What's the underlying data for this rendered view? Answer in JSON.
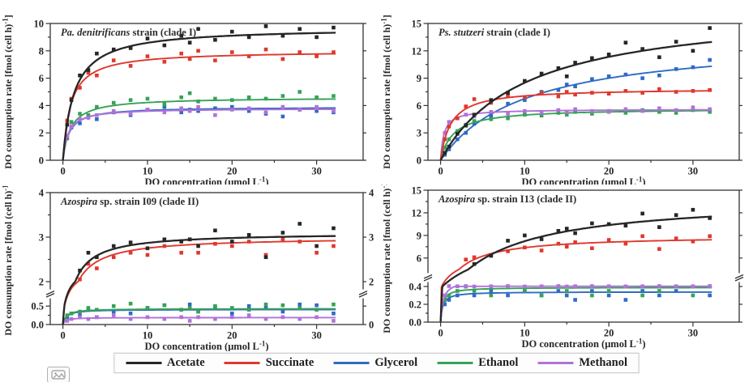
{
  "colors": {
    "acetate": "#262626",
    "succinate": "#df382d",
    "glycerol": "#2f6bc4",
    "ethanol": "#36a257",
    "methanol": "#b072d8"
  },
  "legend": [
    {
      "key": "acetate",
      "label": "Acetate"
    },
    {
      "key": "succinate",
      "label": "Succinate"
    },
    {
      "key": "glycerol",
      "label": "Glycerol"
    },
    {
      "key": "ethanol",
      "label": "Ethanol"
    },
    {
      "key": "methanol",
      "label": "Methanol"
    }
  ],
  "chart_data": [
    {
      "type": "scatter",
      "title_italic": "Pa. denitrificans",
      "title_rest": " strain (clade I)",
      "xlabel_pre": "DO concentration (μmol L",
      "xlabel_sup": "-1",
      "xlabel_post": ")",
      "ylabel_pre": "DO consumption rate [fmol (cell h)",
      "ylabel_sup": "-1",
      "ylabel_post": "]",
      "x_range": [
        -1.5,
        35.5
      ],
      "x_ticks": [
        {
          "v": 0,
          "label": "0"
        },
        {
          "v": 10,
          "label": "10"
        },
        {
          "v": 20,
          "label": "20"
        },
        {
          "v": 30,
          "label": "30"
        }
      ],
      "x_ticks_minor": [
        5,
        15,
        25
      ],
      "y_map": [
        [
          0,
          0
        ],
        [
          10,
          1
        ]
      ],
      "y_ticks": [
        {
          "v": 0,
          "label": "0"
        },
        {
          "v": 2,
          "label": "2"
        },
        {
          "v": 4,
          "label": "4"
        },
        {
          "v": 6,
          "label": "6"
        },
        {
          "v": 8,
          "label": "8"
        },
        {
          "v": 10,
          "label": "10"
        }
      ],
      "y_ticks_minor": [
        1,
        3,
        5,
        7,
        9
      ],
      "break_frac": null,
      "gap": null,
      "right_labels": [],
      "x": [
        0.5,
        1,
        2,
        3,
        4,
        6,
        8,
        10,
        12,
        14,
        15,
        16,
        18,
        20,
        22,
        24,
        26,
        28,
        30,
        32
      ],
      "series": [
        {
          "name": "Glycerol",
          "key": "glycerol",
          "vmax": 3.9,
          "km": 0.7,
          "y": [
            1.6,
            2.4,
            2.7,
            3.2,
            3.0,
            3.5,
            3.3,
            3.7,
            3.9,
            3.5,
            3.7,
            3.6,
            3.8,
            3.9,
            3.6,
            3.4,
            3.2,
            3.7,
            3.6,
            3.5
          ]
        },
        {
          "name": "Ethanol",
          "key": "ethanol",
          "vmax": 4.6,
          "km": 0.9,
          "y": [
            1.7,
            2.8,
            3.4,
            3.3,
            3.9,
            4.2,
            4.4,
            4.5,
            4.1,
            4.6,
            4.9,
            4.3,
            4.5,
            4.4,
            4.6,
            4.5,
            4.7,
            5.0,
            4.6,
            4.7
          ]
        },
        {
          "name": "Methanol",
          "key": "methanol",
          "vmax": 3.8,
          "km": 0.6,
          "y": [
            1.8,
            2.5,
            3.0,
            3.1,
            3.3,
            3.6,
            3.4,
            3.7,
            3.5,
            3.8,
            3.6,
            3.9,
            3.3,
            3.7,
            3.8,
            3.5,
            3.9,
            3.7,
            3.9,
            3.6
          ]
        },
        {
          "name": "Succinate",
          "key": "succinate",
          "vmax": 8.0,
          "km": 0.9,
          "y": [
            2.9,
            4.5,
            5.3,
            6.4,
            6.2,
            7.3,
            6.9,
            7.6,
            7.2,
            7.8,
            7.4,
            8.0,
            7.3,
            7.9,
            7.6,
            8.1,
            7.4,
            7.9,
            7.6,
            7.9
          ]
        },
        {
          "name": "Acetate",
          "key": "acetate",
          "vmax": 9.7,
          "km": 1.3,
          "y": [
            2.6,
            4.4,
            6.2,
            6.6,
            7.8,
            8.1,
            8.2,
            8.9,
            8.4,
            9.1,
            8.6,
            9.6,
            8.8,
            9.4,
            9.0,
            9.8,
            9.1,
            9.6,
            9.0,
            9.7
          ]
        }
      ]
    },
    {
      "type": "scatter",
      "title_italic": "Ps. stutzeri",
      "title_rest": " strain (clade I)",
      "xlabel_pre": "DO concentration (μmol L",
      "xlabel_sup": "-1",
      "xlabel_post": ")",
      "ylabel_pre": "DO consumption rate [fmol (cell h)",
      "ylabel_sup": "-1",
      "ylabel_post": "]",
      "x_range": [
        -1.5,
        35.5
      ],
      "x_ticks": [
        {
          "v": 0,
          "label": "0"
        },
        {
          "v": 10,
          "label": "10"
        },
        {
          "v": 20,
          "label": "20"
        },
        {
          "v": 30,
          "label": "30"
        }
      ],
      "x_ticks_minor": [
        5,
        15,
        25
      ],
      "y_map": [
        [
          0,
          0
        ],
        [
          15,
          1
        ]
      ],
      "y_ticks": [
        {
          "v": 0,
          "label": "0"
        },
        {
          "v": 3,
          "label": "3"
        },
        {
          "v": 6,
          "label": "6"
        },
        {
          "v": 9,
          "label": "9"
        },
        {
          "v": 12,
          "label": "12"
        },
        {
          "v": 15,
          "label": "15"
        }
      ],
      "y_ticks_minor": [
        1.5,
        4.5,
        7.5,
        10.5,
        13.5
      ],
      "break_frac": null,
      "gap": null,
      "right_labels": [],
      "x": [
        0.5,
        1,
        2,
        3,
        4,
        6,
        8,
        10,
        12,
        14,
        15,
        16,
        18,
        20,
        22,
        24,
        26,
        28,
        30,
        32
      ],
      "series": [
        {
          "name": "Glycerol",
          "key": "glycerol",
          "vmax": 13.5,
          "km": 10,
          "y": [
            0.6,
            1.2,
            2.3,
            3.0,
            4.0,
            4.9,
            6.2,
            6.6,
            7.5,
            7.7,
            8.3,
            8.1,
            8.9,
            9.2,
            9.4,
            9.0,
            9.3,
            10.0,
            10.2,
            11.0
          ]
        },
        {
          "name": "Ethanol",
          "key": "ethanol",
          "vmax": 5.7,
          "km": 1.5,
          "y": [
            1.4,
            2.3,
            3.2,
            3.9,
            4.3,
            4.5,
            4.6,
            5.0,
            4.9,
            5.2,
            5.0,
            5.3,
            5.1,
            5.4,
            5.2,
            5.5,
            5.3,
            5.2,
            5.5,
            5.3
          ]
        },
        {
          "name": "Methanol",
          "key": "methanol",
          "vmax": 5.6,
          "km": 0.4,
          "y": [
            3.0,
            4.2,
            4.6,
            5.0,
            4.8,
            5.3,
            5.1,
            5.4,
            5.2,
            5.5,
            5.3,
            5.6,
            5.4,
            5.3,
            5.6,
            5.4,
            5.7,
            5.5,
            5.8,
            5.6
          ]
        },
        {
          "name": "Succinate",
          "key": "succinate",
          "vmax": 7.9,
          "km": 1.2,
          "y": [
            2.3,
            3.7,
            4.6,
            5.9,
            6.7,
            6.3,
            7.1,
            6.9,
            7.4,
            7.0,
            7.5,
            7.2,
            7.4,
            7.3,
            7.6,
            7.4,
            7.8,
            7.5,
            7.6,
            7.7
          ]
        },
        {
          "name": "Acetate",
          "key": "acetate",
          "vmax": 17,
          "km": 10,
          "y": [
            0.8,
            1.5,
            2.9,
            3.8,
            5.0,
            6.6,
            7.4,
            8.7,
            9.5,
            10.1,
            9.2,
            10.7,
            11.2,
            11.6,
            12.9,
            12.2,
            11.3,
            13.0,
            12.0,
            14.5
          ]
        }
      ]
    },
    {
      "type": "scatter",
      "title_italic": "Azospira",
      "title_rest": " sp. strain I09 (clade II)",
      "xlabel_pre": "DO concentration (μmol L",
      "xlabel_sup": "-1",
      "xlabel_post": ")",
      "ylabel_pre": "DO consumption rate [fmol (cell h)",
      "ylabel_sup": "-1",
      "ylabel_post": "]",
      "x_range": [
        -1.5,
        35.5
      ],
      "x_ticks": [
        {
          "v": 0,
          "label": "0"
        },
        {
          "v": 10,
          "label": "10"
        },
        {
          "v": 20,
          "label": "20"
        },
        {
          "v": 30,
          "label": "30"
        }
      ],
      "x_ticks_minor": [
        5,
        15,
        25
      ],
      "y_map": [
        [
          0,
          0
        ],
        [
          0.5,
          0.14
        ],
        [
          2,
          0.325
        ],
        [
          4,
          1
        ]
      ],
      "y_ticks": [
        {
          "v": 0,
          "label": "0.0"
        },
        {
          "v": 0.5,
          "label": "0.5"
        },
        {
          "v": 2,
          "label": "2"
        },
        {
          "v": 3,
          "label": "3"
        },
        {
          "v": 4,
          "label": "4"
        }
      ],
      "y_ticks_minor": [
        0.25,
        2.5,
        3.5
      ],
      "break_frac": 0.2325,
      "gap": [
        0.75,
        1.95
      ],
      "right_labels": [
        {
          "v": 4,
          "label": "4"
        },
        {
          "v": 3,
          "label": "3"
        },
        {
          "v": 2,
          "label": "2"
        },
        {
          "v": 0,
          "label": "0"
        }
      ],
      "x": [
        0.5,
        1,
        2,
        3,
        4,
        6,
        8,
        10,
        12,
        14,
        15,
        16,
        18,
        20,
        22,
        24,
        26,
        28,
        30,
        32
      ],
      "series": [
        {
          "name": "Glycerol",
          "key": "glycerol",
          "vmax": 0.41,
          "km": 0.4,
          "y": [
            0.2,
            0.3,
            0.25,
            0.4,
            0.2,
            0.35,
            0.3,
            0.45,
            0.55,
            0.4,
            0.6,
            0.35,
            0.45,
            0.3,
            0.5,
            0.45,
            0.35,
            0.6,
            0.55,
            0.3
          ]
        },
        {
          "name": "Ethanol",
          "key": "ethanol",
          "vmax": 0.43,
          "km": 0.4,
          "y": [
            0.25,
            0.3,
            0.35,
            0.45,
            0.4,
            0.5,
            0.65,
            0.45,
            0.55,
            0.4,
            0.45,
            0.35,
            0.5,
            0.45,
            0.4,
            0.6,
            0.55,
            0.45,
            0.4,
            0.6
          ]
        },
        {
          "name": "Methanol",
          "key": "methanol",
          "vmax": 0.19,
          "km": 0.3,
          "y": [
            0.1,
            0.15,
            0.2,
            0.15,
            0.2,
            0.25,
            0.15,
            0.2,
            0.15,
            0.2,
            0.1,
            0.2,
            0.15,
            0.2,
            0.25,
            0.15,
            0.2,
            0.15,
            0.2,
            0.1
          ]
        },
        {
          "name": "Succinate",
          "key": "succinate",
          "vmax": 3.0,
          "km": 0.9,
          "y": [
            1.1,
            1.6,
            2.05,
            2.4,
            2.3,
            2.55,
            2.65,
            2.6,
            2.8,
            2.65,
            2.95,
            2.65,
            2.85,
            2.8,
            2.9,
            2.6,
            2.95,
            2.9,
            2.65,
            2.8
          ]
        },
        {
          "name": "Acetate",
          "key": "acetate",
          "vmax": 3.1,
          "km": 0.8,
          "y": [
            1.2,
            1.7,
            2.25,
            2.65,
            2.55,
            2.8,
            2.88,
            2.75,
            2.95,
            2.9,
            2.95,
            2.8,
            3.15,
            2.9,
            3.05,
            2.55,
            3.1,
            3.3,
            2.8,
            3.2
          ]
        }
      ]
    },
    {
      "type": "scatter",
      "title_italic": "Azospira",
      "title_rest": " sp. strain I13 (clade II)",
      "xlabel_pre": "DO concentration (μmol L",
      "xlabel_sup": "-1",
      "xlabel_post": ")",
      "ylabel_pre": "DO consumption rate [fmol (cell h)",
      "ylabel_sup": "-1",
      "ylabel_post": "]",
      "x_range": [
        -1.5,
        35.5
      ],
      "x_ticks": [
        {
          "v": 0,
          "label": "0"
        },
        {
          "v": 10,
          "label": "10"
        },
        {
          "v": 20,
          "label": "20"
        },
        {
          "v": 30,
          "label": "30"
        }
      ],
      "x_ticks_minor": [
        5,
        15,
        25
      ],
      "y_map": [
        [
          0,
          0
        ],
        [
          0.4,
          0.27
        ],
        [
          4.5,
          0.4
        ],
        [
          15,
          1
        ]
      ],
      "y_ticks": [
        {
          "v": 0,
          "label": "0.0"
        },
        {
          "v": 0.2,
          "label": "0.2"
        },
        {
          "v": 0.4,
          "label": "0.4"
        },
        {
          "v": 6,
          "label": "6"
        },
        {
          "v": 9,
          "label": "9"
        },
        {
          "v": 12,
          "label": "12"
        },
        {
          "v": 15,
          "label": "15"
        }
      ],
      "y_ticks_minor": [
        0.1,
        0.3,
        7.5,
        10.5,
        13.5
      ],
      "break_frac": 0.3375,
      "gap": [
        0.55,
        4.45
      ],
      "right_labels": [],
      "x": [
        0.5,
        1,
        2,
        3,
        4,
        6,
        8,
        10,
        12,
        14,
        15,
        16,
        18,
        20,
        22,
        24,
        26,
        28,
        30,
        32
      ],
      "series": [
        {
          "name": "Glycerol",
          "key": "glycerol",
          "vmax": 0.34,
          "km": 0.25,
          "y": [
            0.2,
            0.25,
            0.3,
            0.4,
            0.3,
            0.35,
            0.3,
            0.35,
            0.3,
            0.35,
            0.3,
            0.25,
            0.35,
            0.3,
            0.25,
            0.35,
            0.3,
            0.35,
            0.4,
            0.3
          ]
        },
        {
          "name": "Ethanol",
          "key": "ethanol",
          "vmax": 0.39,
          "km": 0.25,
          "y": [
            0.25,
            0.3,
            0.35,
            0.4,
            0.35,
            0.3,
            0.4,
            0.35,
            0.3,
            0.4,
            0.35,
            0.4,
            0.3,
            0.35,
            0.4,
            0.3,
            0.35,
            0.45,
            0.3,
            0.45
          ]
        },
        {
          "name": "Methanol",
          "key": "methanol",
          "vmax": 0.47,
          "km": 0.3,
          "y": [
            0.3,
            0.5,
            0.45,
            0.5,
            0.4,
            0.45,
            0.5,
            0.4,
            0.45,
            0.5,
            0.4,
            0.45,
            0.5,
            0.45,
            0.4,
            0.45,
            0.5,
            0.4,
            0.45,
            0.5
          ]
        },
        {
          "name": "Succinate",
          "key": "succinate",
          "vmax": 9.0,
          "km": 2.2,
          "y": [
            1.7,
            2.8,
            4.3,
            5.8,
            6.1,
            6.4,
            6.9,
            7.4,
            7.0,
            7.9,
            7.5,
            8.1,
            7.3,
            8.4,
            7.9,
            8.9,
            7.2,
            8.6,
            8.2,
            8.9
          ]
        },
        {
          "name": "Acetate",
          "key": "acetate",
          "vmax": 14,
          "km": 7,
          "y": [
            0.8,
            1.4,
            2.6,
            3.6,
            5.2,
            6.3,
            8.3,
            9.0,
            8.5,
            9.6,
            9.9,
            9.3,
            10.6,
            10.5,
            10.3,
            11.9,
            10.1,
            11.7,
            12.4,
            11.3
          ]
        }
      ]
    }
  ]
}
